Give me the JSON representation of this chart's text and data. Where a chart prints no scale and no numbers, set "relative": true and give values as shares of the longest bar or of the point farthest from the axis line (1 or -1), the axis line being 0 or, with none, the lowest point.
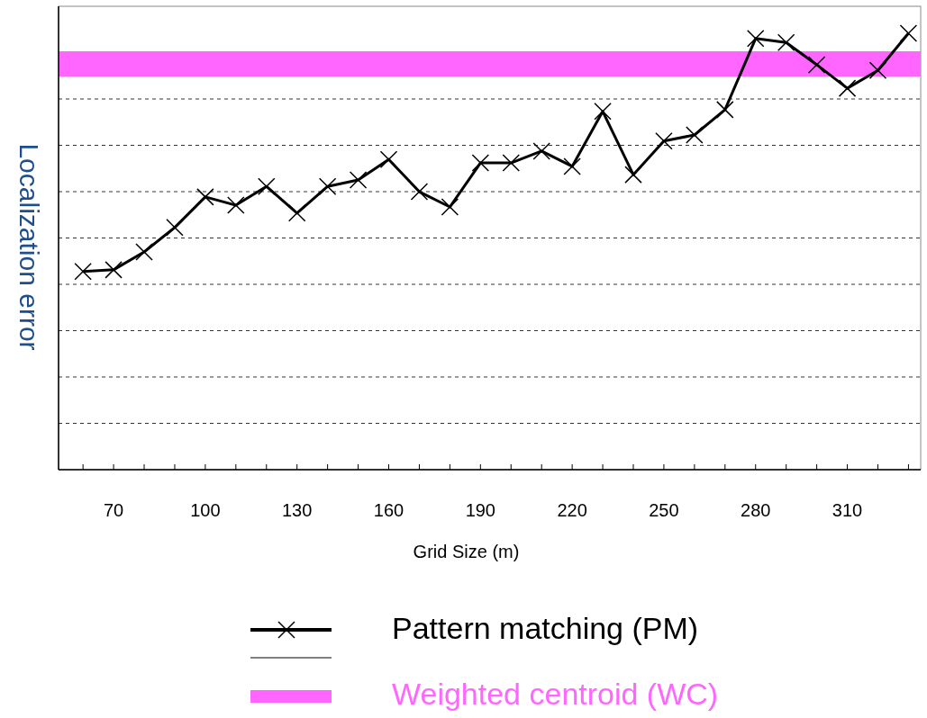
{
  "chart_data": {
    "type": "line",
    "relative": true,
    "xlabel": "Grid Size (m)",
    "ylabel": "Localization error",
    "xlim": [
      52,
      334
    ],
    "xticks": [
      {
        "value": 60,
        "label": null
      },
      70,
      {
        "value": 80,
        "label": null
      },
      {
        "value": 90,
        "label": null
      },
      100,
      {
        "value": 110,
        "label": null
      },
      {
        "value": 120,
        "label": null
      },
      130,
      {
        "value": 140,
        "label": null
      },
      {
        "value": 150,
        "label": null
      },
      160,
      {
        "value": 170,
        "label": null
      },
      {
        "value": 180,
        "label": null
      },
      190,
      {
        "value": 200,
        "label": null
      },
      {
        "value": 210,
        "label": null
      },
      220,
      {
        "value": 230,
        "label": null
      },
      {
        "value": 240,
        "label": null
      },
      250,
      {
        "value": 260,
        "label": null
      },
      {
        "value": 270,
        "label": null
      },
      280,
      {
        "value": 290,
        "label": null
      },
      {
        "value": 300,
        "label": null
      },
      310,
      {
        "value": 320,
        "label": null
      },
      {
        "value": 330,
        "label": null
      }
    ],
    "grid": "y",
    "legend": "bottom",
    "line_style": "solid",
    "series": [
      {
        "name": "Pattern matching (PM)",
        "color": "#000000",
        "marker": "cross",
        "x": [
          60,
          70,
          80,
          90,
          100,
          110,
          120,
          130,
          140,
          150,
          160,
          170,
          180,
          190,
          200,
          210,
          220,
          230,
          240,
          250,
          260,
          270,
          280,
          290,
          300,
          310,
          320,
          330
        ],
        "values": [
          0.454,
          0.458,
          0.499,
          0.555,
          0.625,
          0.606,
          0.649,
          0.588,
          0.649,
          0.664,
          0.711,
          0.637,
          0.602,
          0.703,
          0.703,
          0.73,
          0.695,
          0.821,
          0.676,
          0.753,
          0.767,
          0.825,
          0.988,
          0.979,
          0.928,
          0.874,
          0.915,
          1.0
        ]
      },
      {
        "name": "Weighted centroid (WC)",
        "color": "#ff66ff",
        "marker": "none",
        "x": [
          52,
          334
        ],
        "values": [
          0.93,
          0.93
        ]
      }
    ]
  }
}
